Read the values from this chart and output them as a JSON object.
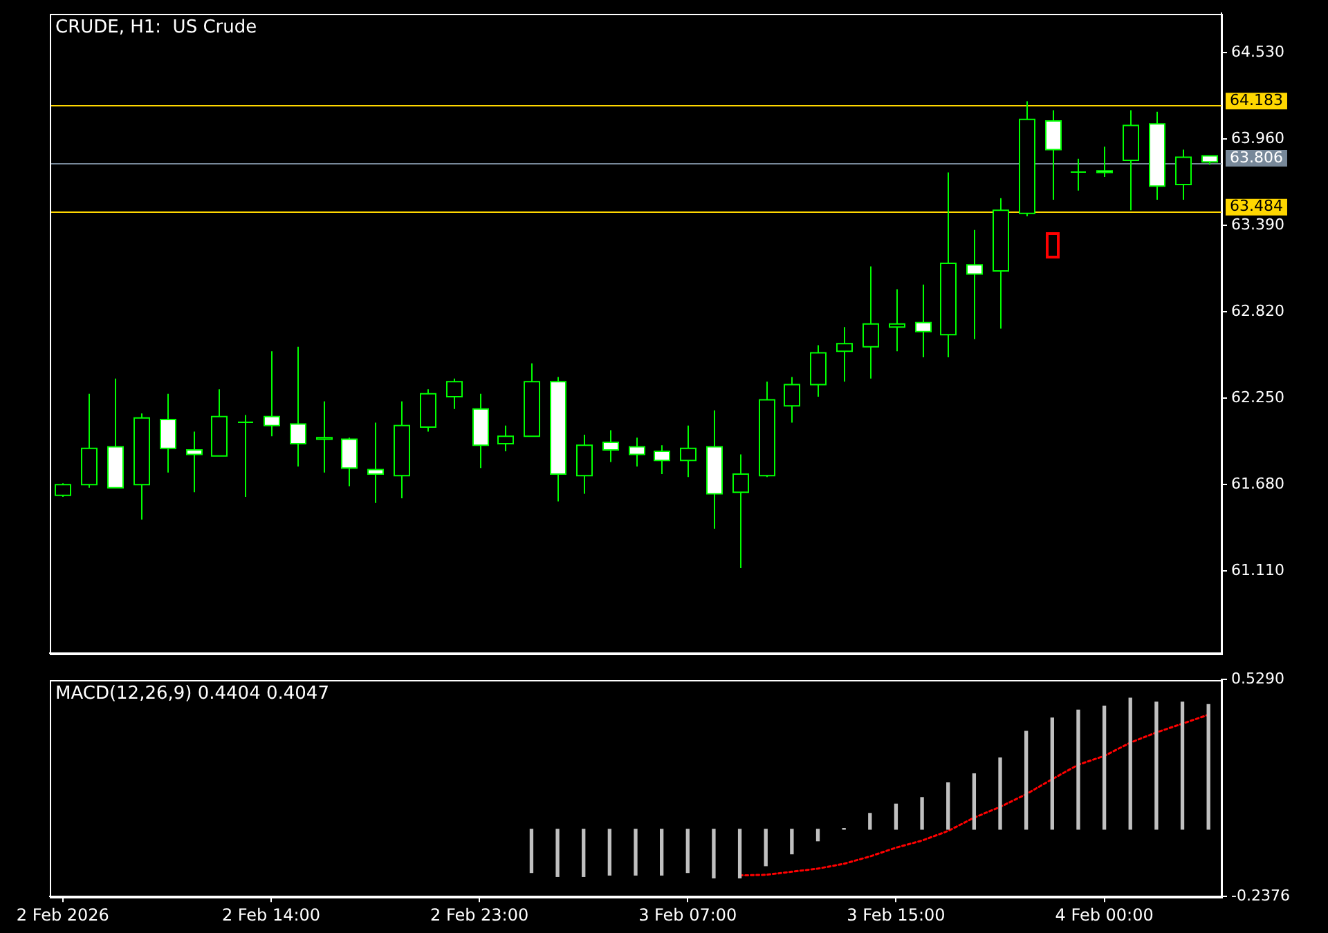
{
  "chart_data": [
    {
      "type": "candlestick",
      "title": "CRUDE, H1:  US Crude",
      "color": "#00ff00",
      "tick_labels": "y",
      "categories": [
        null,
        null,
        null,
        null,
        null,
        null,
        null,
        null,
        null,
        null,
        null,
        null,
        null,
        null,
        null,
        null,
        null,
        null,
        null,
        null,
        null,
        null,
        null,
        null,
        null,
        null,
        null,
        null,
        null,
        null,
        null,
        null,
        null,
        null,
        null,
        null,
        null,
        null,
        null,
        null,
        null,
        null,
        null,
        null,
        null
      ],
      "ohlc": [
        [
          61.61,
          61.69,
          61.6,
          61.68
        ],
        [
          61.68,
          62.28,
          61.66,
          61.92
        ],
        [
          61.93,
          62.38,
          61.66,
          61.66
        ],
        [
          61.68,
          62.15,
          61.45,
          62.12
        ],
        [
          62.11,
          62.28,
          61.76,
          61.92
        ],
        [
          61.91,
          62.03,
          61.63,
          61.88
        ],
        [
          61.87,
          62.31,
          61.87,
          62.13
        ],
        [
          62.1,
          62.14,
          61.6,
          62.1
        ],
        [
          62.13,
          62.56,
          62.0,
          62.07
        ],
        [
          62.08,
          62.59,
          61.8,
          61.95
        ],
        [
          61.98,
          62.23,
          61.76,
          61.99
        ],
        [
          61.98,
          61.99,
          61.67,
          61.79
        ],
        [
          61.78,
          62.09,
          61.56,
          61.75
        ],
        [
          61.74,
          62.23,
          61.59,
          62.07
        ],
        [
          62.06,
          62.31,
          62.03,
          62.28
        ],
        [
          62.26,
          62.38,
          62.18,
          62.36
        ],
        [
          62.18,
          62.28,
          61.79,
          61.94
        ],
        [
          61.95,
          62.07,
          61.9,
          62.0
        ],
        [
          62.0,
          62.48,
          62.0,
          62.36
        ],
        [
          62.36,
          62.39,
          61.57,
          61.75
        ],
        [
          61.74,
          62.01,
          61.62,
          61.94
        ],
        [
          61.96,
          62.04,
          61.83,
          61.91
        ],
        [
          61.93,
          61.99,
          61.8,
          61.88
        ],
        [
          61.9,
          61.94,
          61.75,
          61.84
        ],
        [
          61.84,
          62.07,
          61.73,
          61.92
        ],
        [
          61.93,
          62.17,
          61.39,
          61.62
        ],
        [
          61.63,
          61.88,
          61.13,
          61.75
        ],
        [
          61.74,
          62.36,
          61.73,
          62.24
        ],
        [
          62.2,
          62.39,
          62.09,
          62.34
        ],
        [
          62.34,
          62.6,
          62.26,
          62.55
        ],
        [
          62.56,
          62.72,
          62.36,
          62.61
        ],
        [
          62.59,
          63.12,
          62.38,
          62.74
        ],
        [
          62.72,
          62.97,
          62.56,
          62.74
        ],
        [
          62.75,
          63.0,
          62.52,
          62.69
        ],
        [
          62.67,
          63.74,
          62.52,
          63.14
        ],
        [
          63.13,
          63.36,
          62.64,
          63.07
        ],
        [
          63.09,
          63.57,
          62.71,
          63.49
        ],
        [
          63.47,
          64.21,
          63.45,
          64.09
        ],
        [
          64.08,
          64.15,
          63.56,
          63.89
        ],
        [
          63.75,
          63.83,
          63.62,
          63.75
        ],
        [
          63.75,
          63.91,
          63.71,
          63.74
        ],
        [
          63.82,
          64.15,
          63.49,
          64.05
        ],
        [
          64.06,
          64.14,
          63.56,
          63.65
        ],
        [
          63.66,
          63.89,
          63.56,
          63.84
        ],
        [
          63.85,
          63.85,
          63.79,
          63.81
        ]
      ],
      "colors": [
        "#000000",
        "#000000",
        "#ffffff",
        "#000000",
        "#ffffff",
        "#ffffff",
        "#000000",
        "#00ff00",
        "#ffffff",
        "#ffffff",
        "#000000",
        "#ffffff",
        "#ffffff",
        "#000000",
        "#000000",
        "#000000",
        "#ffffff",
        "#000000",
        "#000000",
        "#ffffff",
        "#000000",
        "#ffffff",
        "#ffffff",
        "#ffffff",
        "#000000",
        "#ffffff",
        "#000000",
        "#000000",
        "#000000",
        "#000000",
        "#000000",
        "#000000",
        "#000000",
        "#ffffff",
        "#000000",
        "#ffffff",
        "#000000",
        "#000000",
        "#ffffff",
        "#00ff00",
        "#ffffff",
        "#000000",
        "#ffffff",
        "#000000",
        "#ffffff"
      ],
      "ylim": [
        60.57,
        64.79
      ],
      "yticks": [
        {
          "value": 64.53,
          "label": "64.530"
        },
        {
          "value": 63.96,
          "label": "63.960"
        },
        {
          "value": 63.39,
          "label": "63.390"
        },
        {
          "value": 62.82,
          "label": "62.820"
        },
        {
          "value": 62.25,
          "label": "62.250"
        },
        {
          "value": 61.68,
          "label": "61.680"
        },
        {
          "value": 61.11,
          "label": "61.110"
        }
      ],
      "ref_lines": [
        {
          "axis": "y",
          "value": 64.183,
          "label": "64.183",
          "color": "#ffd700"
        },
        {
          "axis": "y",
          "value": 63.806,
          "label": "63.806",
          "color": "#778899"
        },
        {
          "axis": "y",
          "value": 63.484,
          "label": "63.484",
          "color": "#ffd700"
        }
      ]
    },
    {
      "type": "bar",
      "title": "MACD(12,26,9) 0.4404 0.4047",
      "marker": "none",
      "categories": [
        "2 Feb 2026",
        null,
        null,
        null,
        null,
        null,
        null,
        null,
        "2 Feb 14:00",
        null,
        null,
        null,
        null,
        null,
        null,
        null,
        "2 Feb 23:00",
        null,
        null,
        null,
        null,
        null,
        null,
        null,
        "3 Feb 07:00",
        null,
        null,
        null,
        null,
        null,
        null,
        null,
        "3 Feb 15:00",
        null,
        null,
        null,
        null,
        null,
        null,
        null,
        "4 Feb 00:00",
        null,
        null,
        null,
        null
      ],
      "series": [
        {
          "type": "bar",
          "color": "#c0c0c0",
          "values": [
            null,
            null,
            null,
            null,
            null,
            null,
            null,
            null,
            null,
            null,
            null,
            null,
            null,
            null,
            null,
            null,
            null,
            null,
            -0.153,
            -0.167,
            -0.167,
            -0.162,
            -0.162,
            -0.162,
            -0.153,
            -0.172,
            -0.172,
            -0.129,
            -0.087,
            -0.041,
            0.003,
            0.056,
            0.089,
            0.112,
            0.164,
            0.196,
            0.252,
            0.346,
            0.393,
            0.421,
            0.435,
            0.463,
            0.449,
            0.449,
            0.4404
          ]
        },
        {
          "type": "line",
          "color": "#ff0000",
          "line_style": "dotted",
          "values": [
            null,
            null,
            null,
            null,
            null,
            null,
            null,
            null,
            null,
            null,
            null,
            null,
            null,
            null,
            null,
            null,
            null,
            null,
            null,
            null,
            null,
            null,
            null,
            null,
            null,
            null,
            -0.163,
            -0.161,
            -0.15,
            -0.139,
            -0.122,
            -0.096,
            -0.065,
            -0.04,
            -0.006,
            0.041,
            0.079,
            0.124,
            0.177,
            0.228,
            0.259,
            0.306,
            0.342,
            0.373,
            0.4047
          ]
        }
      ],
      "ylim": [
        -0.2376,
        0.529
      ],
      "yticks": [
        {
          "value": 0.529,
          "label": "0.5290"
        },
        {
          "value": -0.2376,
          "label": "-0.2376"
        }
      ]
    }
  ]
}
